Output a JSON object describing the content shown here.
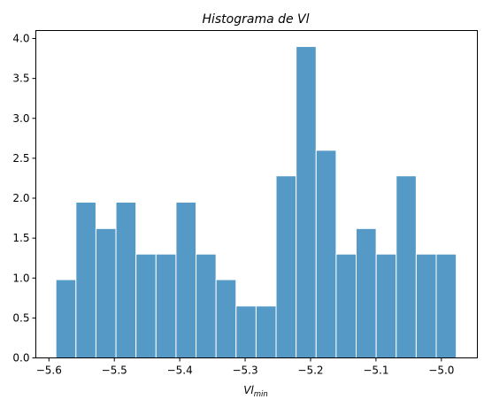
{
  "chart_data": {
    "type": "bar",
    "title": "Histograma de Vl",
    "xlabel_main": "Vl",
    "xlabel_sub": "min",
    "ylabel": "",
    "bin_edges": [
      -5.5893,
      -5.5587,
      -5.5281,
      -5.4975,
      -5.4669,
      -5.4363,
      -5.4057,
      -5.3751,
      -5.3445,
      -5.3139,
      -5.2833,
      -5.2527,
      -5.2221,
      -5.1915,
      -5.1609,
      -5.1303,
      -5.0997,
      -5.0691,
      -5.0385,
      -5.0079,
      -4.9773
    ],
    "values": [
      0.98,
      1.95,
      1.62,
      1.95,
      1.3,
      1.3,
      1.95,
      1.3,
      0.98,
      0.65,
      0.65,
      2.28,
      3.9,
      2.6,
      1.3,
      1.62,
      1.3,
      2.28,
      1.3,
      1.3
    ],
    "xlim": [
      -5.62,
      -4.945
    ],
    "ylim": [
      0,
      4.1
    ],
    "x_ticks": [
      -5.6,
      -5.5,
      -5.4,
      -5.3,
      -5.2,
      -5.1,
      -5.0
    ],
    "x_tick_labels": [
      "−5.6",
      "−5.5",
      "−5.4",
      "−5.3",
      "−5.2",
      "−5.1",
      "−5.0"
    ],
    "y_ticks": [
      0,
      0.5,
      1.0,
      1.5,
      2.0,
      2.5,
      3.0,
      3.5,
      4.0
    ],
    "y_tick_labels": [
      "0.0",
      "0.5",
      "1.0",
      "1.5",
      "2.0",
      "2.5",
      "3.0",
      "3.5",
      "4.0"
    ],
    "bar_color": "#5599c7",
    "grid": false
  }
}
